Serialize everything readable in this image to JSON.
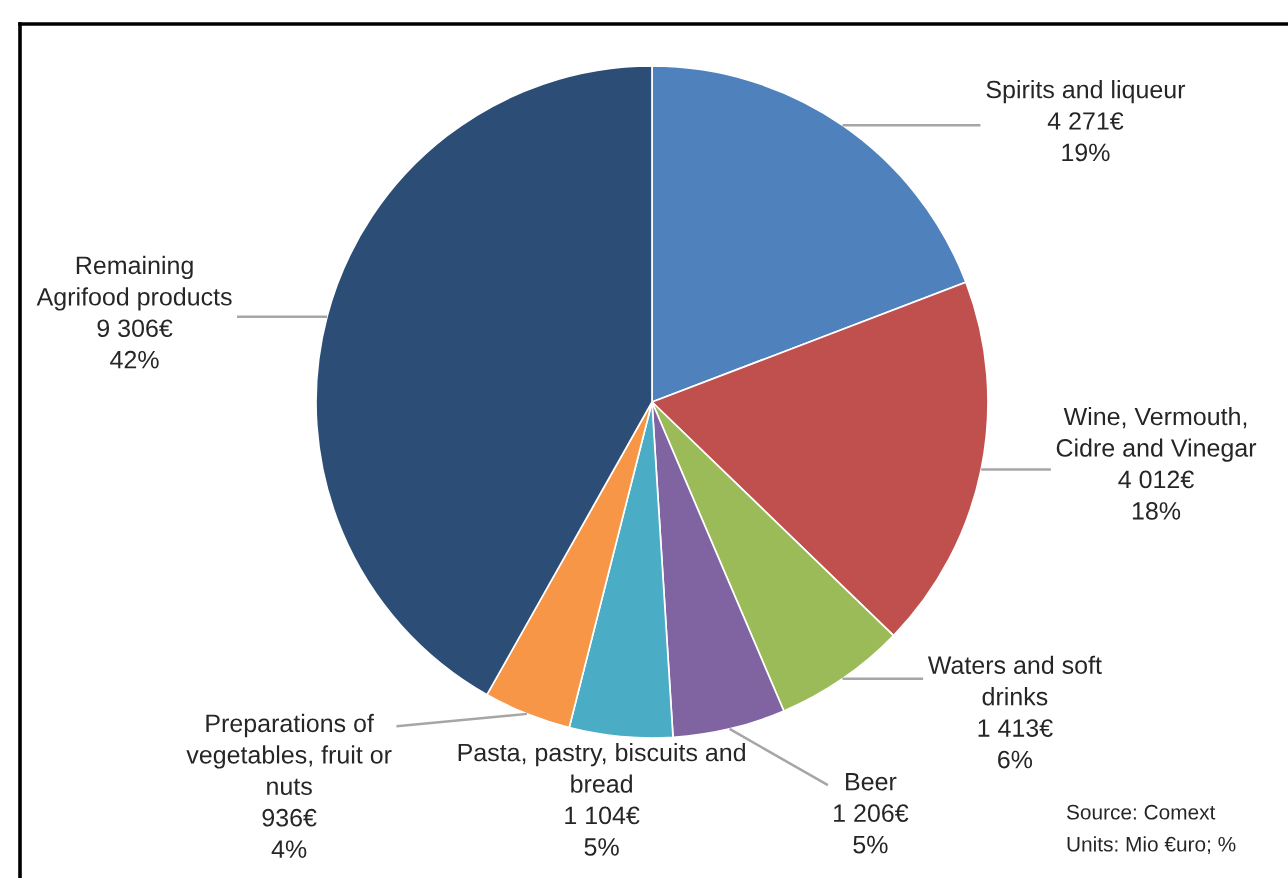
{
  "chart_data": {
    "type": "pie",
    "categories": [
      "Spirits and liqueur",
      "Wine, Vermouth,\nCidre and Vinegar",
      "Waters and soft\ndrinks",
      "Beer",
      "Pasta, pastry, biscuits and\nbread",
      "Preparations of\nvegetables, fruit or\nnuts",
      "Remaining\nAgrifood products"
    ],
    "values": [
      4271,
      4012,
      1413,
      1206,
      1104,
      936,
      9306
    ],
    "colors": [
      "#4f81bd",
      "#c0504d",
      "#9bbb59",
      "#8064a2",
      "#4bacc6",
      "#f79646",
      "#2c4d75"
    ],
    "value_labels": [
      "4 271€\n19%",
      "4 012€\n18%",
      "1 413€\n6%",
      "1 206€\n5%",
      "1 104€\n5%",
      "936€\n4%",
      "9 306€\n42%"
    ],
    "annotations": [
      "Source: Comext",
      "Units: Mio €uro; %"
    ]
  }
}
